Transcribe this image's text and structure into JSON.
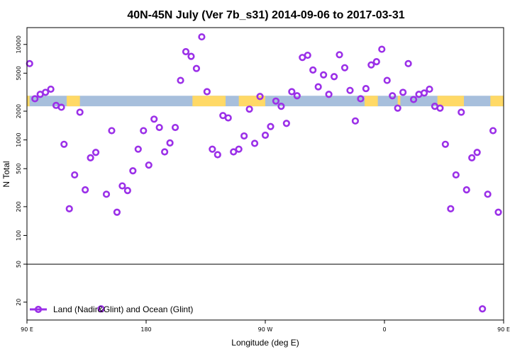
{
  "chart_data": {
    "type": "scatter",
    "title": "40N-45N July (Ver 7b_s31)   2014-09-06 to 2017-03-31",
    "xlabel": "Longitude (deg E)",
    "ylabel": "N Total",
    "y_scale": "log",
    "xlim": [
      90,
      450
    ],
    "ylim": [
      13,
      15000
    ],
    "x_ticks": [
      {
        "value": 90,
        "label": "90 E"
      },
      {
        "value": 180,
        "label": "180"
      },
      {
        "value": 270,
        "label": "90 W"
      },
      {
        "value": 360,
        "label": "0"
      },
      {
        "value": 450,
        "label": "90 E"
      }
    ],
    "y_ticks": [
      {
        "value": 20,
        "label": "20"
      },
      {
        "value": 50,
        "label": "50"
      },
      {
        "value": 100,
        "label": "100"
      },
      {
        "value": 200,
        "label": "200"
      },
      {
        "value": 500,
        "label": "500"
      },
      {
        "value": 1000,
        "label": "1000"
      },
      {
        "value": 2000,
        "label": "2000"
      },
      {
        "value": 5000,
        "label": "5000"
      },
      {
        "value": 10000,
        "label": "10000"
      }
    ],
    "break_line_y": 50,
    "colors": {
      "marker": "#9b30e8",
      "land": "#ffd966",
      "ocean": "#a7bfdc"
    },
    "surface_band": {
      "y_range": [
        2250,
        2900
      ],
      "land_segments": [
        [
          90,
          92
        ],
        [
          120,
          130
        ],
        [
          215,
          240
        ],
        [
          250,
          270
        ],
        [
          345,
          355
        ],
        [
          370,
          372
        ],
        [
          400,
          420
        ],
        [
          440,
          450
        ]
      ]
    },
    "legend": {
      "label": "Land (Nadir&Glint) and Ocean (Glint)",
      "position": "bottom-left"
    },
    "series": [
      {
        "name": "Land (Nadir&Glint) and Ocean (Glint)",
        "points": [
          [
            92,
            6300
          ],
          [
            96,
            2700
          ],
          [
            100,
            3000
          ],
          [
            104,
            3150
          ],
          [
            108,
            3400
          ],
          [
            112,
            2300
          ],
          [
            116,
            2200
          ],
          [
            118,
            900
          ],
          [
            122,
            190
          ],
          [
            126,
            430
          ],
          [
            130,
            1950
          ],
          [
            134,
            300
          ],
          [
            138,
            650
          ],
          [
            142,
            740
          ],
          [
            146,
            17
          ],
          [
            150,
            270
          ],
          [
            154,
            1250
          ],
          [
            158,
            175
          ],
          [
            162,
            330
          ],
          [
            166,
            295
          ],
          [
            170,
            475
          ],
          [
            174,
            800
          ],
          [
            178,
            1250
          ],
          [
            182,
            545
          ],
          [
            186,
            1650
          ],
          [
            190,
            1350
          ],
          [
            194,
            750
          ],
          [
            198,
            930
          ],
          [
            202,
            1350
          ],
          [
            206,
            4200
          ],
          [
            210,
            8400
          ],
          [
            214,
            7500
          ],
          [
            218,
            5600
          ],
          [
            222,
            12000
          ],
          [
            226,
            3200
          ],
          [
            230,
            800
          ],
          [
            234,
            700
          ],
          [
            238,
            1800
          ],
          [
            242,
            1700
          ],
          [
            246,
            750
          ],
          [
            250,
            800
          ],
          [
            254,
            1100
          ],
          [
            258,
            2100
          ],
          [
            262,
            920
          ],
          [
            266,
            2850
          ],
          [
            270,
            1120
          ],
          [
            274,
            1380
          ],
          [
            278,
            2550
          ],
          [
            282,
            2250
          ],
          [
            286,
            1490
          ],
          [
            290,
            3200
          ],
          [
            294,
            2900
          ],
          [
            298,
            7300
          ],
          [
            302,
            7700
          ],
          [
            306,
            5400
          ],
          [
            310,
            3600
          ],
          [
            314,
            4800
          ],
          [
            318,
            3000
          ],
          [
            322,
            4600
          ],
          [
            326,
            7800
          ],
          [
            330,
            5700
          ],
          [
            334,
            3300
          ],
          [
            338,
            1580
          ],
          [
            342,
            2700
          ],
          [
            346,
            3450
          ],
          [
            350,
            6100
          ],
          [
            354,
            6600
          ],
          [
            358,
            8900
          ],
          [
            362,
            4200
          ],
          [
            366,
            2900
          ],
          [
            370,
            2150
          ],
          [
            374,
            3150
          ],
          [
            378,
            6300
          ],
          [
            382,
            2650
          ],
          [
            386,
            3000
          ],
          [
            390,
            3100
          ],
          [
            394,
            3400
          ],
          [
            398,
            2250
          ],
          [
            402,
            2150
          ],
          [
            406,
            900
          ],
          [
            410,
            190
          ],
          [
            414,
            430
          ],
          [
            418,
            1950
          ],
          [
            422,
            300
          ],
          [
            426,
            650
          ],
          [
            430,
            740
          ],
          [
            434,
            17
          ],
          [
            438,
            270
          ],
          [
            442,
            1250
          ],
          [
            446,
            175
          ]
        ]
      }
    ]
  }
}
